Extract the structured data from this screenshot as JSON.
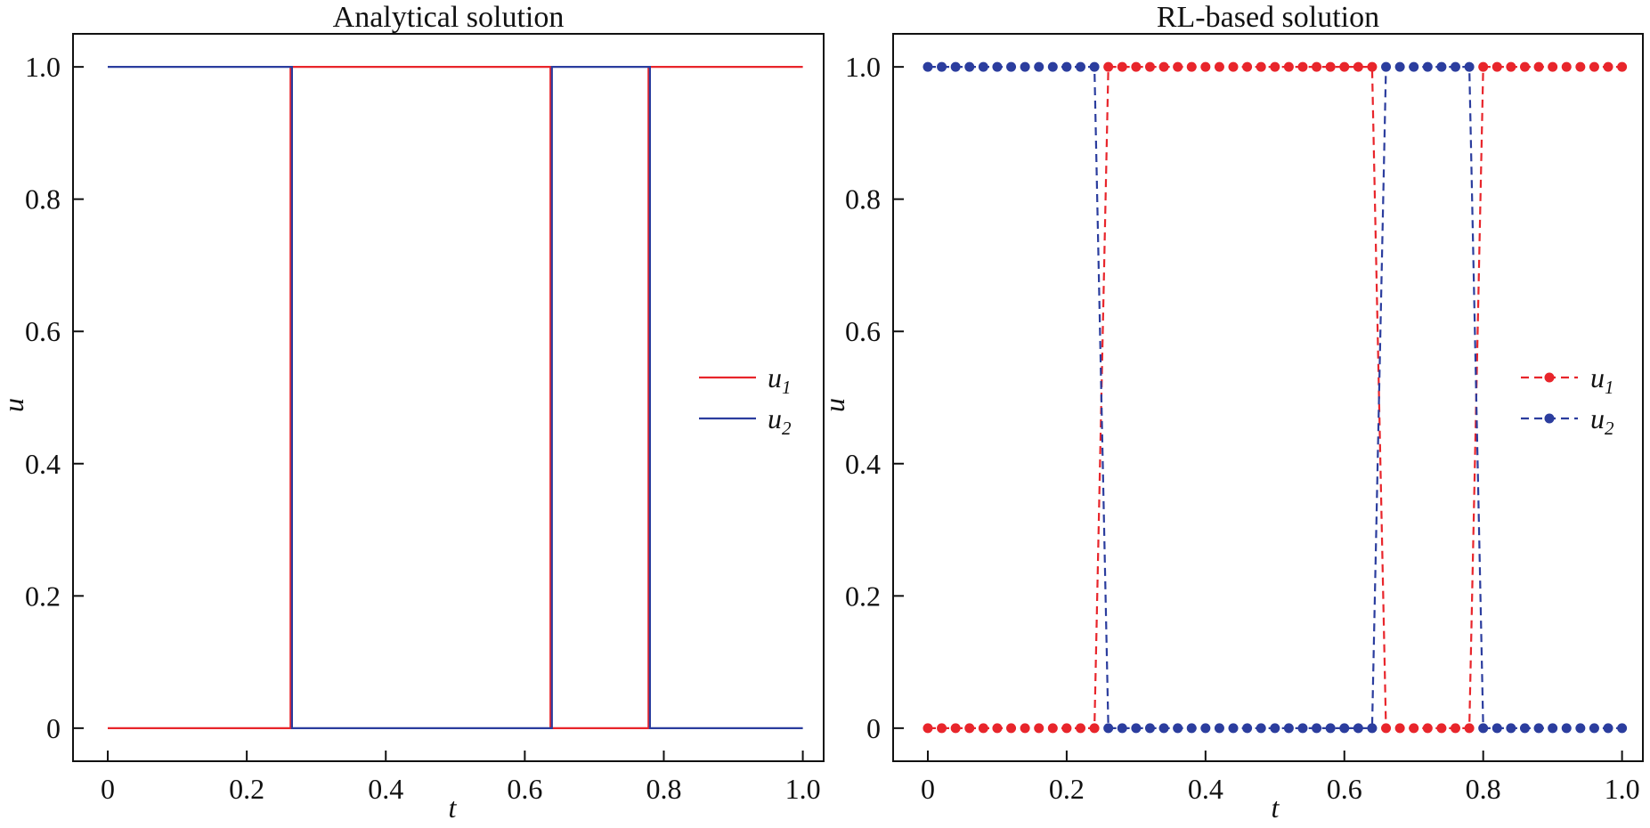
{
  "chart_data": [
    {
      "type": "line",
      "title": "Analytical solution",
      "xlabel": "t",
      "ylabel": "u",
      "xlim": [
        -0.05,
        1.03
      ],
      "ylim": [
        -0.05,
        1.05
      ],
      "xticks": [
        "0",
        "0.2",
        "0.4",
        "0.6",
        "0.8",
        "1.0"
      ],
      "yticks": [
        "0",
        "0.2",
        "0.4",
        "0.6",
        "0.8",
        "1.0"
      ],
      "legend_position": "right-center",
      "grid": false,
      "series": [
        {
          "name": "u1",
          "label_base": "u",
          "label_sub": "1",
          "color": "#e8252b",
          "style": "solid",
          "x": [
            0,
            0.263,
            0.263,
            0.637,
            0.637,
            0.778,
            0.778,
            1.0
          ],
          "y": [
            0,
            0,
            1,
            1,
            0,
            0,
            1,
            1
          ]
        },
        {
          "name": "u2",
          "label_base": "u",
          "label_sub": "2",
          "color": "#2b3d9e",
          "style": "solid",
          "x": [
            0,
            0.265,
            0.265,
            0.639,
            0.639,
            0.78,
            0.78,
            1.0
          ],
          "y": [
            1,
            1,
            0,
            0,
            1,
            1,
            0,
            0
          ]
        }
      ]
    },
    {
      "type": "line",
      "title": "RL-based solution",
      "xlabel": "t",
      "ylabel": "u",
      "xlim": [
        -0.05,
        1.03
      ],
      "ylim": [
        -0.05,
        1.05
      ],
      "xticks": [
        "0",
        "0.2",
        "0.4",
        "0.6",
        "0.8",
        "1.0"
      ],
      "yticks": [
        "0",
        "0.2",
        "0.4",
        "0.6",
        "0.8",
        "1.0"
      ],
      "legend_position": "right-center",
      "grid": false,
      "sample_step": 0.02,
      "series": [
        {
          "name": "u1",
          "label_base": "u",
          "label_sub": "1",
          "color": "#e8252b",
          "style": "dashed-markers",
          "x": [
            0,
            0.02,
            0.04,
            0.06,
            0.08,
            0.1,
            0.12,
            0.14,
            0.16,
            0.18,
            0.2,
            0.22,
            0.24,
            0.26,
            0.28,
            0.3,
            0.32,
            0.34,
            0.36,
            0.38,
            0.4,
            0.42,
            0.44,
            0.46,
            0.48,
            0.5,
            0.52,
            0.54,
            0.56,
            0.58,
            0.6,
            0.62,
            0.64,
            0.66,
            0.68,
            0.7,
            0.72,
            0.74,
            0.76,
            0.78,
            0.8,
            0.82,
            0.84,
            0.86,
            0.88,
            0.9,
            0.92,
            0.94,
            0.96,
            0.98,
            1.0
          ],
          "y": [
            0,
            0,
            0,
            0,
            0,
            0,
            0,
            0,
            0,
            0,
            0,
            0,
            0,
            1,
            1,
            1,
            1,
            1,
            1,
            1,
            1,
            1,
            1,
            1,
            1,
            1,
            1,
            1,
            1,
            1,
            1,
            1,
            1,
            0,
            0,
            0,
            0,
            0,
            0,
            0,
            1,
            1,
            1,
            1,
            1,
            1,
            1,
            1,
            1,
            1,
            1
          ]
        },
        {
          "name": "u2",
          "label_base": "u",
          "label_sub": "2",
          "color": "#2b3d9e",
          "style": "dashed-markers",
          "x": [
            0,
            0.02,
            0.04,
            0.06,
            0.08,
            0.1,
            0.12,
            0.14,
            0.16,
            0.18,
            0.2,
            0.22,
            0.24,
            0.26,
            0.28,
            0.3,
            0.32,
            0.34,
            0.36,
            0.38,
            0.4,
            0.42,
            0.44,
            0.46,
            0.48,
            0.5,
            0.52,
            0.54,
            0.56,
            0.58,
            0.6,
            0.62,
            0.64,
            0.66,
            0.68,
            0.7,
            0.72,
            0.74,
            0.76,
            0.78,
            0.8,
            0.82,
            0.84,
            0.86,
            0.88,
            0.9,
            0.92,
            0.94,
            0.96,
            0.98,
            1.0
          ],
          "y": [
            1,
            1,
            1,
            1,
            1,
            1,
            1,
            1,
            1,
            1,
            1,
            1,
            1,
            0,
            0,
            0,
            0,
            0,
            0,
            0,
            0,
            0,
            0,
            0,
            0,
            0,
            0,
            0,
            0,
            0,
            0,
            0,
            0,
            1,
            1,
            1,
            1,
            1,
            1,
            1,
            0,
            0,
            0,
            0,
            0,
            0,
            0,
            0,
            0,
            0,
            0
          ]
        }
      ]
    }
  ]
}
